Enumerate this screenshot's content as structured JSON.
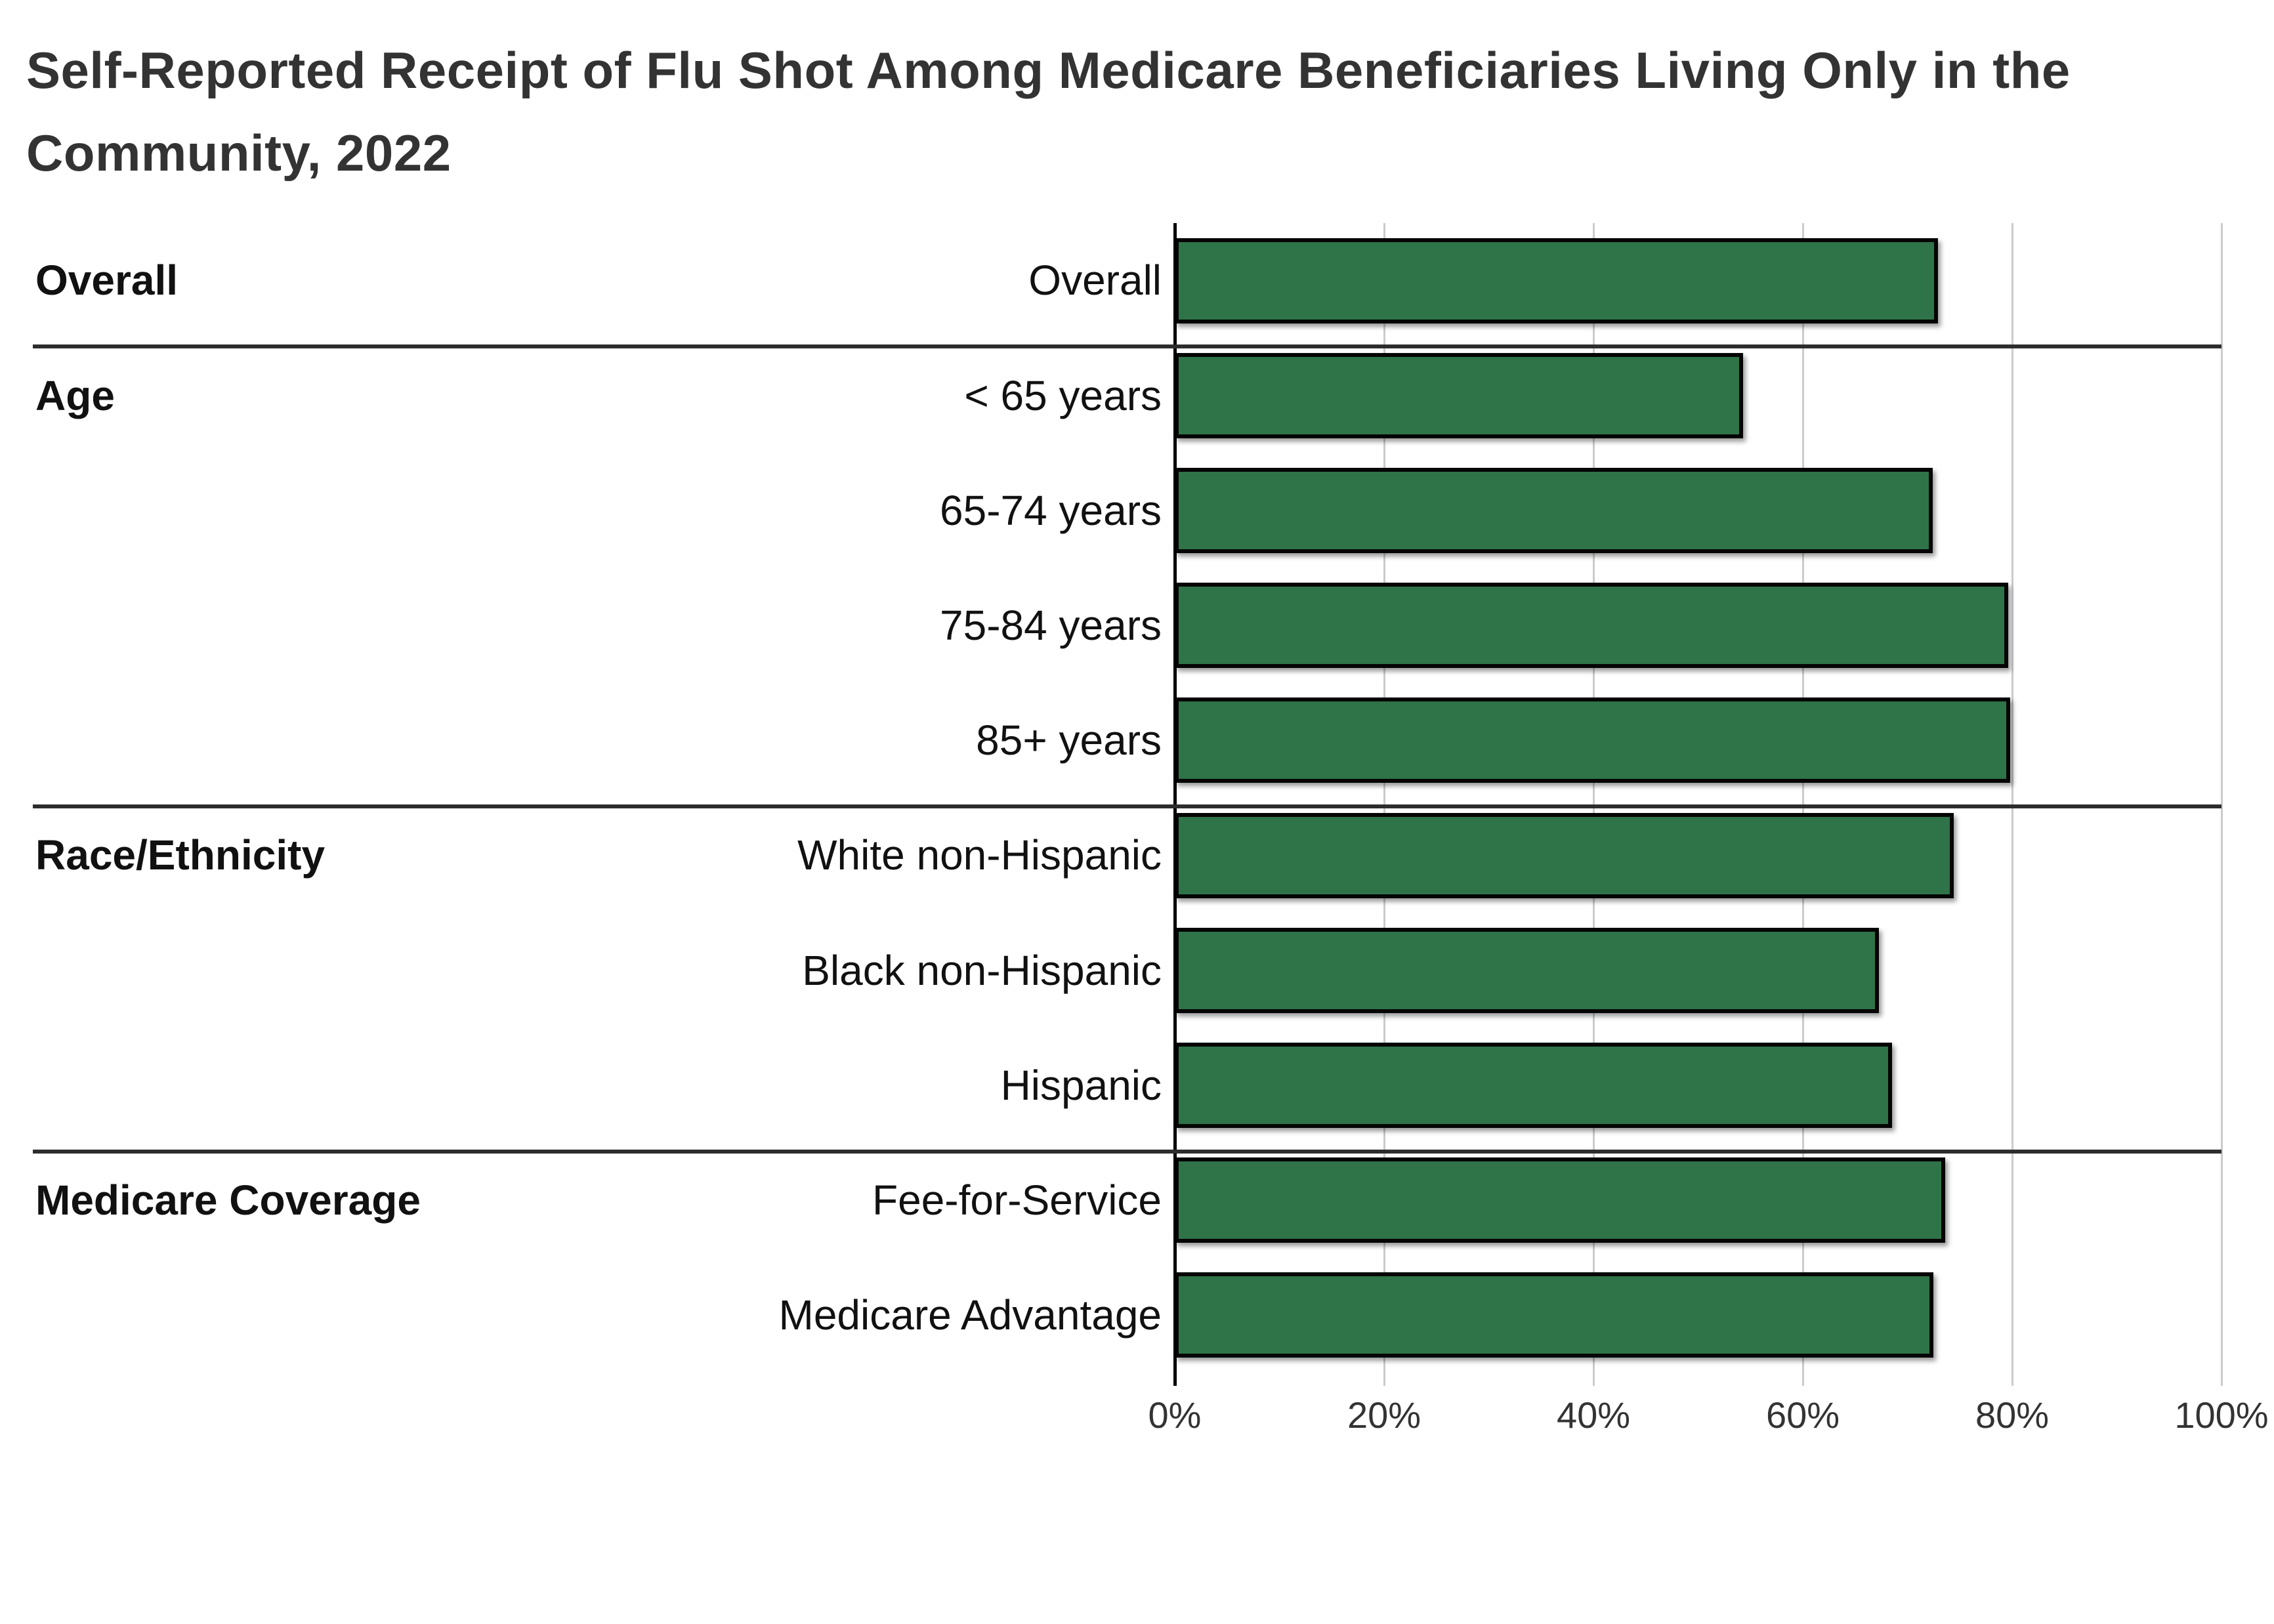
{
  "title": {
    "line1": "Self-Reported Receipt of Flu Shot Among Medicare Beneficiaries Living Only in the",
    "line2": "Community, 2022"
  },
  "colors": {
    "bar_fill": "#2F7348",
    "bar_border": "#050505",
    "gridline": "#CBCBCB",
    "axis": "#000000",
    "separator": "#2D2D2D",
    "title_text": "#333333",
    "label_text": "#111111",
    "tick_text": "#333333"
  },
  "chart_data": {
    "type": "bar",
    "orientation": "horizontal",
    "title": "Self-Reported Receipt of Flu Shot Among Medicare Beneficiaries Living Only in the Community, 2022",
    "xlabel": "",
    "ylabel": "",
    "xlim": [
      0,
      100
    ],
    "x_ticks": [
      "0%",
      "20%",
      "40%",
      "60%",
      "80%",
      "100%"
    ],
    "grid": true,
    "legend": "none",
    "groups": [
      {
        "label": "Overall",
        "rows": [
          {
            "label": "Overall",
            "value": 72.9
          }
        ]
      },
      {
        "label": "Age",
        "rows": [
          {
            "label": "< 65 years",
            "value": 54.3
          },
          {
            "label": "65-74 years",
            "value": 72.4
          },
          {
            "label": "75-84 years",
            "value": 79.6
          },
          {
            "label": "85+ years",
            "value": 79.8
          }
        ]
      },
      {
        "label": "Race/Ethnicity",
        "rows": [
          {
            "label": "White non-Hispanic",
            "value": 74.4
          },
          {
            "label": "Black non-Hispanic",
            "value": 67.3
          },
          {
            "label": "Hispanic",
            "value": 68.5
          }
        ]
      },
      {
        "label": "Medicare Coverage",
        "rows": [
          {
            "label": "Fee-for-Service",
            "value": 73.6
          },
          {
            "label": "Medicare Advantage",
            "value": 72.5
          }
        ]
      }
    ]
  }
}
